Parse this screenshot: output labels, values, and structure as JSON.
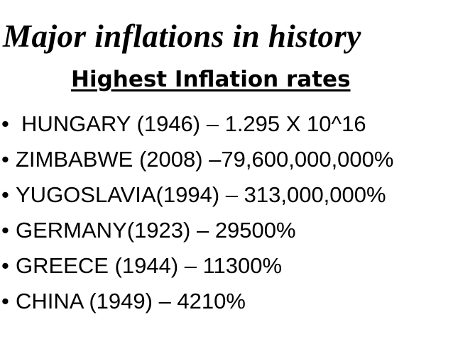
{
  "slide": {
    "title": "Major inflations in history",
    "subtitle": "Highest Inflation rates",
    "items": [
      "HUNGARY (1946) – 1.295 X 10^16",
      "ZIMBABWE (2008) –79,600,000,000%",
      "YUGOSLAVIA(1994) – 313,000,000%",
      "GERMANY(1923) – 29500%",
      "GREECE (1944) – 11300%",
      "CHINA (1949) – 4210%"
    ]
  }
}
